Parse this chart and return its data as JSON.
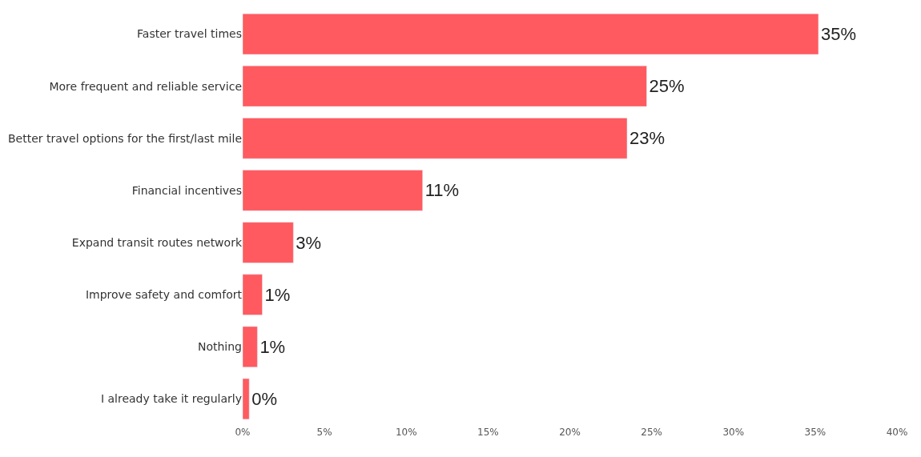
{
  "chart_data": {
    "type": "bar",
    "orientation": "horizontal",
    "categories": [
      "Faster travel times",
      "More frequent and reliable service",
      "Better travel options for the first/last mile",
      "Financial incentives",
      "Expand transit routes network",
      "Improve safety and comfort",
      "Nothing",
      "I already take it regularly"
    ],
    "values": [
      35.2,
      24.7,
      23.5,
      11.0,
      3.1,
      1.2,
      0.9,
      0.4
    ],
    "value_labels": [
      "35%",
      "25%",
      "23%",
      "11%",
      "3%",
      "1%",
      "1%",
      "0%"
    ],
    "color": "#ff5a5f",
    "xlim": [
      0,
      40
    ],
    "xticks": [
      {
        "value": 0,
        "label": "0%"
      },
      {
        "value": 5,
        "label": "5%"
      },
      {
        "value": 10,
        "label": "10%"
      },
      {
        "value": 15,
        "label": "15%"
      },
      {
        "value": 20,
        "label": "20%"
      },
      {
        "value": 25,
        "label": "25%"
      },
      {
        "value": 30,
        "label": "30%"
      },
      {
        "value": 35,
        "label": "35%"
      },
      {
        "value": 40,
        "label": "40%"
      }
    ],
    "legend": false
  }
}
